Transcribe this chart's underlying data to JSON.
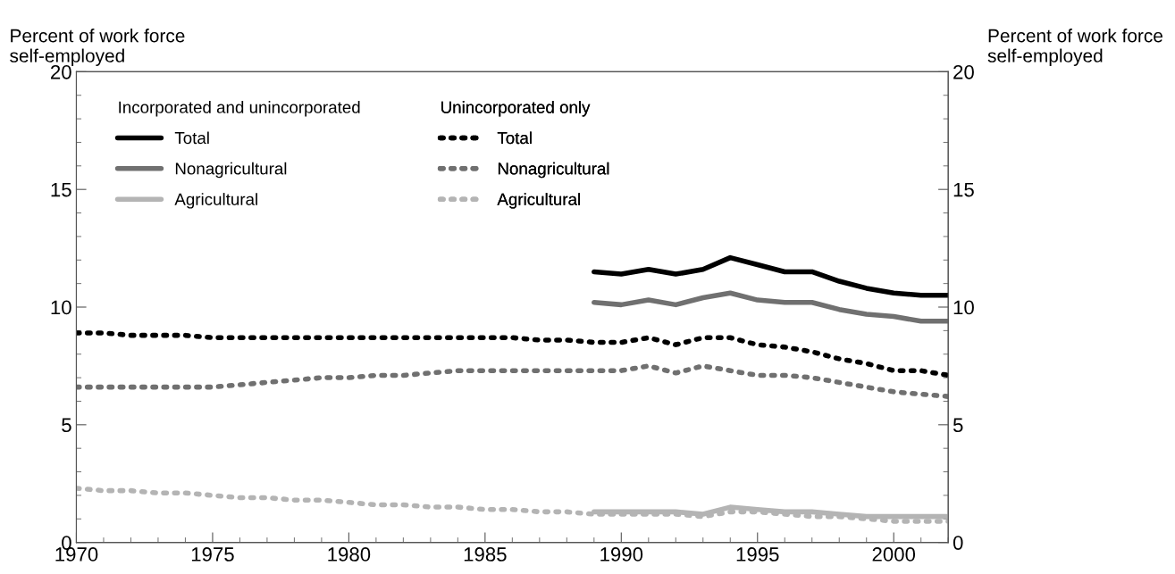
{
  "chart_data": {
    "type": "line",
    "ylabel": "Percent of work force\nself-employed",
    "y2label": "Percent of work force\nself-employed",
    "annotations": [
      "Incorporated and unincorporated",
      "Unincorporated only"
    ],
    "x": [
      1970,
      1971,
      1972,
      1973,
      1974,
      1975,
      1976,
      1977,
      1978,
      1979,
      1980,
      1981,
      1982,
      1983,
      1984,
      1985,
      1986,
      1987,
      1988,
      1989,
      1990,
      1991,
      1992,
      1993,
      1994,
      1995,
      1996,
      1997,
      1998,
      1999,
      2000,
      2001,
      2002
    ],
    "xlim": [
      1970,
      2002
    ],
    "xticks": [
      1970,
      1975,
      1980,
      1985,
      1990,
      1995,
      2000
    ],
    "ylim": [
      0,
      20
    ],
    "yticks": [
      0,
      5,
      10,
      15,
      20
    ],
    "y2lim": [
      0,
      20
    ],
    "y2ticks": [
      0,
      5,
      10,
      15,
      20
    ],
    "grid": false,
    "legend": "top left",
    "marker": "none",
    "series": [
      {
        "name": "Total",
        "color": "#000000",
        "line_style": "solid",
        "values": [
          null,
          null,
          null,
          null,
          null,
          null,
          null,
          null,
          null,
          null,
          null,
          null,
          null,
          null,
          null,
          null,
          null,
          null,
          null,
          11.5,
          11.4,
          11.6,
          11.4,
          11.6,
          12.1,
          11.8,
          11.5,
          11.5,
          11.1,
          10.8,
          10.6,
          10.5,
          10.5
        ]
      },
      {
        "name": "Nonagricultural",
        "color": "#707070",
        "line_style": "solid",
        "values": [
          null,
          null,
          null,
          null,
          null,
          null,
          null,
          null,
          null,
          null,
          null,
          null,
          null,
          null,
          null,
          null,
          null,
          null,
          null,
          10.2,
          10.1,
          10.3,
          10.1,
          10.4,
          10.6,
          10.3,
          10.2,
          10.2,
          9.9,
          9.7,
          9.6,
          9.4,
          9.4
        ]
      },
      {
        "name": "Agricultural",
        "color": "#b4b4b4",
        "line_style": "solid",
        "values": [
          null,
          null,
          null,
          null,
          null,
          null,
          null,
          null,
          null,
          null,
          null,
          null,
          null,
          null,
          null,
          null,
          null,
          null,
          null,
          1.3,
          1.3,
          1.3,
          1.3,
          1.2,
          1.5,
          1.4,
          1.3,
          1.3,
          1.2,
          1.1,
          1.1,
          1.1,
          1.1
        ]
      },
      {
        "name": "Total",
        "color": "#000000",
        "line_style": "dotted",
        "values": [
          8.9,
          8.9,
          8.8,
          8.8,
          8.8,
          8.7,
          8.7,
          8.7,
          8.7,
          8.7,
          8.7,
          8.7,
          8.7,
          8.7,
          8.7,
          8.7,
          8.7,
          8.6,
          8.6,
          8.5,
          8.5,
          8.7,
          8.4,
          8.7,
          8.7,
          8.4,
          8.3,
          8.1,
          7.8,
          7.6,
          7.3,
          7.3,
          7.1
        ]
      },
      {
        "name": "Nonagricultural",
        "color": "#707070",
        "line_style": "dotted",
        "values": [
          6.6,
          6.6,
          6.6,
          6.6,
          6.6,
          6.6,
          6.7,
          6.8,
          6.9,
          7.0,
          7.0,
          7.1,
          7.1,
          7.2,
          7.3,
          7.3,
          7.3,
          7.3,
          7.3,
          7.3,
          7.3,
          7.5,
          7.2,
          7.5,
          7.3,
          7.1,
          7.1,
          7.0,
          6.8,
          6.6,
          6.4,
          6.3,
          6.2
        ]
      },
      {
        "name": "Agricultural",
        "color": "#b4b4b4",
        "line_style": "dotted",
        "values": [
          2.3,
          2.2,
          2.2,
          2.1,
          2.1,
          2.0,
          1.9,
          1.9,
          1.8,
          1.8,
          1.7,
          1.6,
          1.6,
          1.5,
          1.5,
          1.4,
          1.4,
          1.3,
          1.3,
          1.2,
          1.2,
          1.2,
          1.2,
          1.1,
          1.3,
          1.3,
          1.2,
          1.1,
          1.1,
          1.0,
          0.9,
          0.9,
          0.9
        ]
      }
    ]
  }
}
